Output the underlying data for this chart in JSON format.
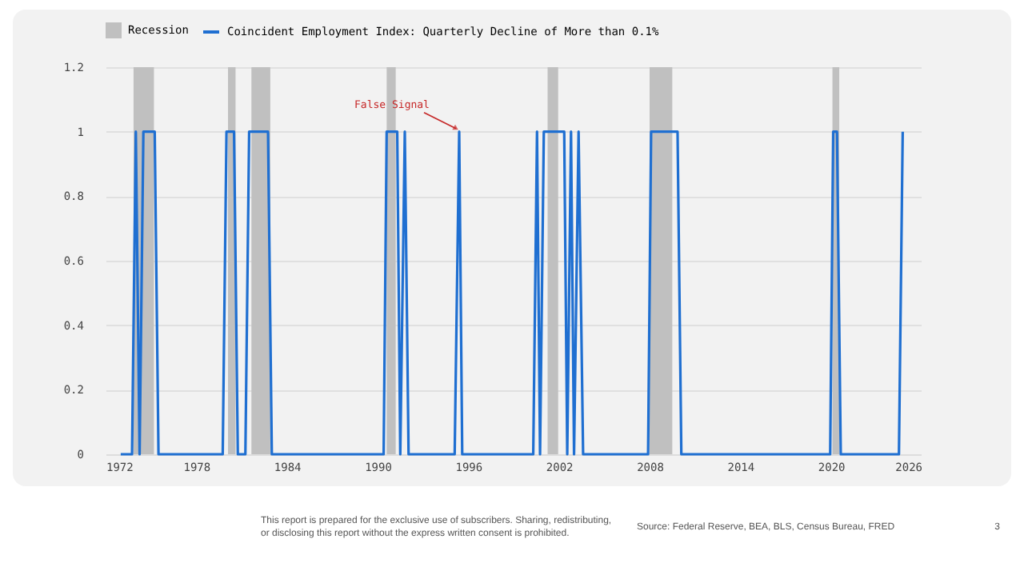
{
  "chart_data": {
    "type": "line",
    "x": [
      1973,
      1973.75,
      1974,
      1974.25,
      1974.5,
      1975.25,
      1975.5,
      1979.75,
      1980,
      1980.5,
      1980.75,
      1981.25,
      1981.5,
      1982.75,
      1983,
      1990.4,
      1990.6,
      1991.3,
      1991.5,
      1991.8,
      1992.05,
      1995.1,
      1995.4,
      1995.6,
      2000.3,
      2000.55,
      2000.75,
      2001,
      2002.35,
      2002.55,
      2002.8,
      2003,
      2003.3,
      2003.6,
      2007.9,
      2008.1,
      2009.85,
      2010.1,
      2019.95,
      2020.15,
      2020.4,
      2020.65,
      2024.5,
      2024.75
    ],
    "series": [
      {
        "name": "Coincident Employment Index: Quarterly Decline of More than 0.1%",
        "color": "#1f6fd1",
        "values": [
          0,
          0,
          1,
          0,
          1,
          1,
          0,
          0,
          1,
          1,
          0,
          0,
          1,
          1,
          0,
          0,
          1,
          1,
          0,
          1,
          0,
          0,
          1,
          0,
          0,
          1,
          0,
          1,
          1,
          0,
          1,
          0,
          1,
          0,
          0,
          1,
          1,
          0,
          0,
          1,
          1,
          0,
          0,
          1
        ]
      }
    ],
    "bands": [
      {
        "axis": "x",
        "from": 1973.85,
        "to": 1975.2,
        "label": "Recession",
        "color": "#c0c0c0"
      },
      {
        "axis": "x",
        "from": 1980.1,
        "to": 1980.6
      },
      {
        "axis": "x",
        "from": 1981.65,
        "to": 1982.9
      },
      {
        "axis": "x",
        "from": 1990.6,
        "to": 1991.2
      },
      {
        "axis": "x",
        "from": 2001.25,
        "to": 2001.95
      },
      {
        "axis": "x",
        "from": 2008.0,
        "to": 2009.5
      },
      {
        "axis": "x",
        "from": 2020.1,
        "to": 2020.55
      }
    ],
    "xlim": [
      1972,
      2026
    ],
    "xticks": [
      1972,
      1978,
      1984,
      1990,
      1996,
      2002,
      2008,
      2014,
      2020,
      2026
    ],
    "ylim": [
      0,
      1.2
    ],
    "yticks": [
      0,
      0.2,
      0.4,
      0.6,
      0.8,
      1,
      1.2
    ],
    "grid": "y",
    "legend": "top",
    "line_style": "solid",
    "annotations": [
      {
        "text": "False Signal",
        "x": 1995.4,
        "y": 1
      },
      "This report is prepared for the exclusive use of subscribers. Sharing, redistributing, or disclosing this report without the express written consent is prohibited.",
      "Source: Federal Reserve, BEA, BLS, Census Bureau, FRED",
      "3"
    ]
  }
}
